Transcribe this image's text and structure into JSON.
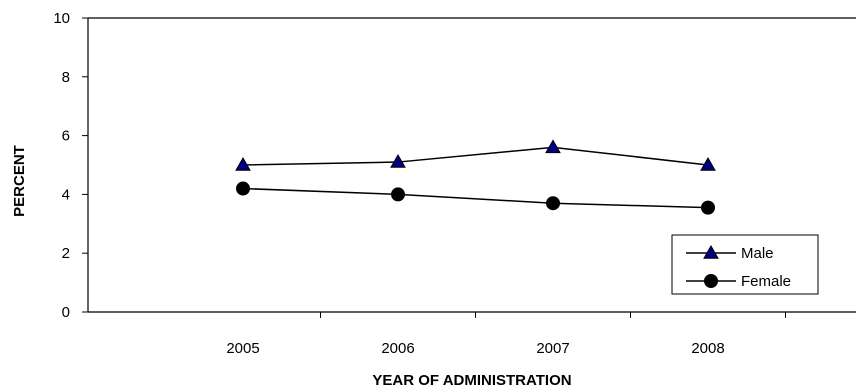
{
  "chart_data": {
    "type": "line",
    "title": "",
    "xlabel": "YEAR OF ADMINISTRATION",
    "ylabel": "PERCENT",
    "x": [
      "2005",
      "2006",
      "2007",
      "2008"
    ],
    "ylim": [
      0,
      10
    ],
    "yticks": [
      "0",
      "2",
      "4",
      "6",
      "8",
      "10"
    ],
    "grid": false,
    "legend_position": "bottom-right",
    "series": [
      {
        "name": "Male",
        "values": [
          5.0,
          5.1,
          5.6,
          5.0
        ],
        "marker": "triangle",
        "marker_color": "#000080",
        "line_color": "#000000"
      },
      {
        "name": "Female",
        "values": [
          4.2,
          4.0,
          3.7,
          3.55
        ],
        "marker": "circle",
        "marker_color": "#000000",
        "line_color": "#000000"
      }
    ]
  }
}
